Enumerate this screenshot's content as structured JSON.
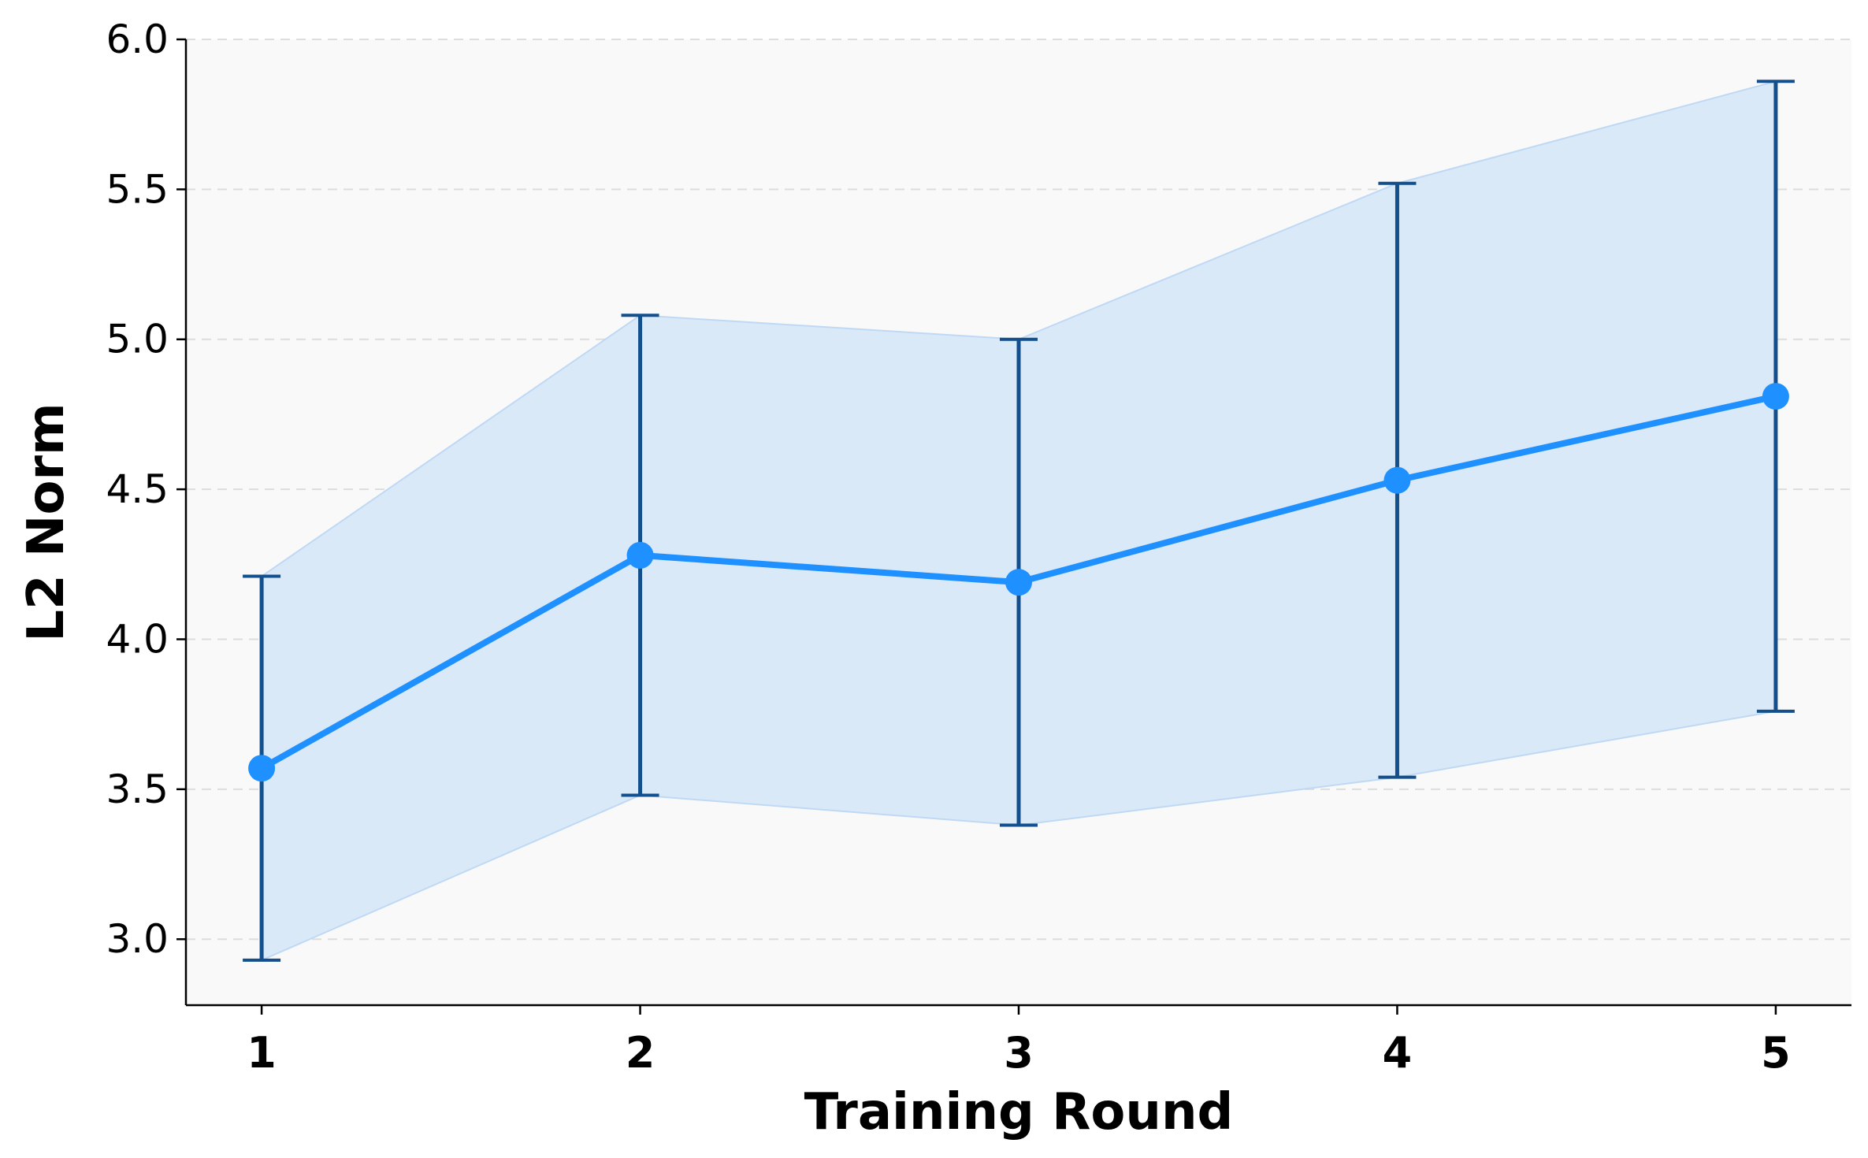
{
  "chart_data": {
    "type": "line",
    "title": "",
    "xlabel": "Training Round",
    "ylabel": "L2 Norm",
    "x": [
      1,
      2,
      3,
      4,
      5
    ],
    "x_tick_labels": [
      "1",
      "2",
      "3",
      "4",
      "5"
    ],
    "xlim": [
      0.8,
      5.2
    ],
    "ylim": [
      2.78,
      6.0
    ],
    "y_ticks": [
      3.0,
      3.5,
      4.0,
      4.5,
      5.0,
      5.5,
      6.0
    ],
    "y_tick_labels": [
      "3.0",
      "3.5",
      "4.0",
      "4.5",
      "5.0",
      "5.5",
      "6.0"
    ],
    "grid": "horizontal-dashed",
    "legend": "none",
    "series": [
      {
        "values": [
          3.57,
          4.28,
          4.19,
          4.53,
          4.81
        ],
        "error": [
          0.64,
          0.8,
          0.81,
          0.99,
          1.05
        ],
        "band_upper": [
          4.21,
          5.08,
          5.0,
          5.52,
          5.86
        ],
        "band_lower": [
          2.93,
          3.48,
          3.38,
          3.54,
          3.76
        ]
      }
    ],
    "colors": {
      "line": "#1E90FF",
      "error_bar": "#134F8C",
      "band_fill": "#D9E9F8",
      "band_edge": "#BFD9F5",
      "plot_bg": "#F9F9F9",
      "grid": "#DDDDDD"
    }
  }
}
